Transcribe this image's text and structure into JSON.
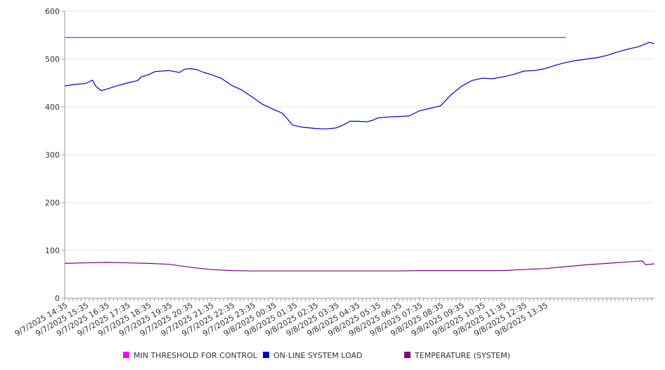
{
  "chart_data": {
    "type": "line",
    "title": "",
    "xlabel": "",
    "ylabel": "",
    "ylim": [
      0,
      600
    ],
    "yticks": [
      0,
      100,
      200,
      300,
      400,
      500,
      600
    ],
    "x_tick_labels": [
      "9/7/2025 14:35",
      "9/7/2025 15:35",
      "9/7/2025 16:35",
      "9/7/2025 17:35",
      "9/7/2025 18:35",
      "9/7/2025 19:35",
      "9/7/2025 20:35",
      "9/7/2025 21:35",
      "9/7/2025 22:35",
      "9/7/2025 23:35",
      "9/8/2025 00:35",
      "9/8/2025 01:35",
      "9/8/2025 02:35",
      "9/8/2025 03:35",
      "9/8/2025 04:35",
      "9/8/2025 05:35",
      "9/8/2025 06:35",
      "9/8/2025 07:35",
      "9/8/2025 08:35",
      "9/8/2025 09:35",
      "9/8/2025 10:35",
      "9/8/2025 11:35",
      "9/8/2025 12:35",
      "9/8/2025 13:35"
    ],
    "grid": "horizontal",
    "legend_position": "bottom",
    "series": [
      {
        "name": "MIN THRESHOLD FOR CONTROL",
        "color": "#ff00ff",
        "points": [
          [
            "9/7/2025 14:35",
            545
          ],
          [
            "9/8/2025 14:35",
            545
          ]
        ]
      },
      {
        "name": "ON-LINE SYSTEM LOAD",
        "color": "#0000cc",
        "points": [
          [
            "9/7/2025 14:35",
            444
          ],
          [
            "9/7/2025 15:05",
            447
          ],
          [
            "9/7/2025 15:35",
            449
          ],
          [
            "9/7/2025 15:55",
            456
          ],
          [
            "9/7/2025 16:05",
            443
          ],
          [
            "9/7/2025 16:20",
            434
          ],
          [
            "9/7/2025 16:35",
            437
          ],
          [
            "9/7/2025 17:05",
            444
          ],
          [
            "9/7/2025 17:35",
            450
          ],
          [
            "9/7/2025 18:05",
            455
          ],
          [
            "9/7/2025 18:15",
            463
          ],
          [
            "9/7/2025 18:35",
            467
          ],
          [
            "9/7/2025 18:55",
            474
          ],
          [
            "9/7/2025 19:15",
            475
          ],
          [
            "9/7/2025 19:35",
            476
          ],
          [
            "9/7/2025 20:05",
            472
          ],
          [
            "9/7/2025 20:20",
            479
          ],
          [
            "9/7/2025 20:35",
            480
          ],
          [
            "9/7/2025 20:55",
            478
          ],
          [
            "9/7/2025 21:15",
            472
          ],
          [
            "9/7/2025 21:35",
            468
          ],
          [
            "9/7/2025 22:05",
            460
          ],
          [
            "9/7/2025 22:35",
            445
          ],
          [
            "9/7/2025 23:05",
            435
          ],
          [
            "9/7/2025 23:35",
            420
          ],
          [
            "9/8/2025 00:05",
            405
          ],
          [
            "9/8/2025 00:35",
            395
          ],
          [
            "9/8/2025 01:00",
            387
          ],
          [
            "9/8/2025 01:15",
            375
          ],
          [
            "9/8/2025 01:30",
            362
          ],
          [
            "9/8/2025 01:55",
            358
          ],
          [
            "9/8/2025 02:35",
            355
          ],
          [
            "9/8/2025 03:05",
            354
          ],
          [
            "9/8/2025 03:35",
            356
          ],
          [
            "9/8/2025 03:55",
            362
          ],
          [
            "9/8/2025 04:15",
            370
          ],
          [
            "9/8/2025 04:35",
            370
          ],
          [
            "9/8/2025 05:05",
            369
          ],
          [
            "9/8/2025 05:20",
            372
          ],
          [
            "9/8/2025 05:35",
            377
          ],
          [
            "9/8/2025 06:05",
            379
          ],
          [
            "9/8/2025 06:35",
            380
          ],
          [
            "9/8/2025 07:05",
            381
          ],
          [
            "9/8/2025 07:35",
            392
          ],
          [
            "9/8/2025 08:05",
            397
          ],
          [
            "9/8/2025 08:35",
            402
          ],
          [
            "9/8/2025 09:05",
            425
          ],
          [
            "9/8/2025 09:35",
            443
          ],
          [
            "9/8/2025 10:05",
            455
          ],
          [
            "9/8/2025 10:35",
            460
          ],
          [
            "9/8/2025 11:05",
            459
          ],
          [
            "9/8/2025 11:35",
            463
          ],
          [
            "9/8/2025 12:05",
            468
          ],
          [
            "9/8/2025 12:35",
            475
          ],
          [
            "9/8/2025 13:05",
            476
          ],
          [
            "9/8/2025 13:35",
            480
          ],
          [
            "9/8/2025 14:05",
            487
          ],
          [
            "9/8/2025 14:35",
            493
          ],
          [
            "9/8/2025 15:05",
            497
          ],
          [
            "9/8/2025 15:35",
            500
          ],
          [
            "9/8/2025 16:05",
            503
          ],
          [
            "9/8/2025 16:35",
            508
          ],
          [
            "9/8/2025 17:05",
            515
          ],
          [
            "9/8/2025 17:35",
            521
          ],
          [
            "9/8/2025 18:05",
            526
          ],
          [
            "9/8/2025 18:35",
            535
          ],
          [
            "9/8/2025 18:50",
            532
          ]
        ]
      },
      {
        "name": "TEMPERATURE (SYSTEM)",
        "color": "#800080",
        "points": [
          [
            "9/7/2025 14:35",
            73
          ],
          [
            "9/7/2025 15:35",
            74
          ],
          [
            "9/7/2025 16:35",
            75
          ],
          [
            "9/7/2025 17:35",
            74
          ],
          [
            "9/7/2025 18:35",
            73
          ],
          [
            "9/7/2025 19:35",
            71
          ],
          [
            "9/7/2025 20:35",
            65
          ],
          [
            "9/7/2025 21:35",
            60
          ],
          [
            "9/7/2025 22:35",
            58
          ],
          [
            "9/7/2025 23:35",
            57
          ],
          [
            "9/8/2025 00:35",
            57
          ],
          [
            "9/8/2025 01:35",
            57
          ],
          [
            "9/8/2025 02:35",
            57
          ],
          [
            "9/8/2025 03:35",
            57
          ],
          [
            "9/8/2025 04:35",
            57
          ],
          [
            "9/8/2025 05:35",
            57
          ],
          [
            "9/8/2025 06:35",
            57
          ],
          [
            "9/8/2025 07:35",
            58
          ],
          [
            "9/8/2025 08:35",
            58
          ],
          [
            "9/8/2025 09:35",
            58
          ],
          [
            "9/8/2025 10:35",
            58
          ],
          [
            "9/8/2025 11:35",
            58
          ],
          [
            "9/8/2025 12:35",
            60
          ],
          [
            "9/8/2025 13:35",
            62
          ],
          [
            "9/8/2025 14:35",
            66
          ],
          [
            "9/8/2025 15:35",
            70
          ],
          [
            "9/8/2025 16:35",
            73
          ],
          [
            "9/8/2025 17:35",
            76
          ],
          [
            "9/8/2025 18:15",
            78
          ],
          [
            "9/8/2025 18:25",
            70
          ],
          [
            "9/8/2025 18:50",
            72
          ]
        ]
      }
    ]
  }
}
